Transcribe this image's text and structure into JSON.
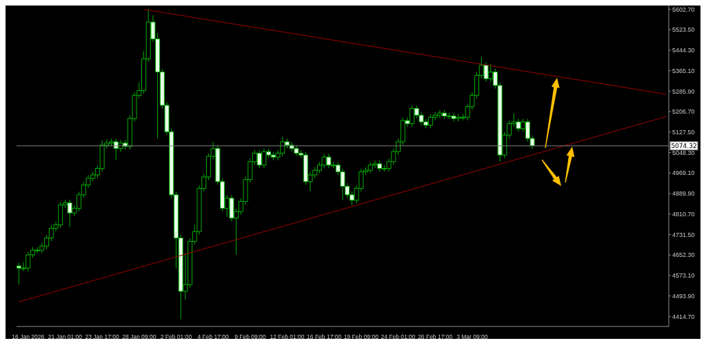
{
  "chart_data": {
    "type": "candlestick",
    "color": "#00b000",
    "categories": [
      null,
      null,
      "16 Jan 2026",
      null,
      null,
      null,
      null,
      null,
      null,
      null,
      "21 Jan 01:00",
      null,
      null,
      null,
      null,
      null,
      null,
      null,
      "23 Jan 17:00",
      null,
      null,
      null,
      null,
      null,
      null,
      null,
      "28 Jan 09:00",
      null,
      null,
      null,
      null,
      null,
      null,
      null,
      "2 Feb 01:00",
      null,
      null,
      null,
      null,
      null,
      null,
      null,
      "4 Feb 17:00",
      null,
      null,
      null,
      null,
      null,
      null,
      null,
      "9 Feb 09:00",
      null,
      null,
      null,
      null,
      null,
      null,
      null,
      "12 Feb 01:00",
      null,
      null,
      null,
      null,
      null,
      null,
      null,
      "16 Feb 17:00",
      null,
      null,
      null,
      null,
      null,
      null,
      null,
      "19 Feb 09:00",
      null,
      null,
      null,
      null,
      null,
      null,
      null,
      "24 Feb 01:00",
      null,
      null,
      null,
      null,
      null,
      null,
      null,
      "26 Feb 17:00",
      null,
      null,
      null,
      null,
      null,
      null,
      null,
      "3 Mar 09:00",
      null,
      null,
      null,
      null,
      null,
      null,
      null,
      null,
      null,
      null,
      null,
      null,
      null,
      null,
      null,
      null,
      null,
      null,
      null,
      null,
      null,
      null,
      null,
      null,
      null,
      null,
      null,
      null,
      null,
      null,
      null,
      null,
      null,
      null,
      null,
      null,
      null,
      null,
      null,
      null,
      null,
      null
    ],
    "ohlc": [
      [
        4610,
        4622,
        4538,
        4602
      ],
      [
        4602,
        4625,
        4590,
        4602
      ],
      [
        4602,
        4665,
        4590,
        4653
      ],
      [
        4653,
        4683,
        4641,
        4671
      ],
      [
        4671,
        4683,
        4659,
        4671
      ],
      [
        4671,
        4699,
        4659,
        4687
      ],
      [
        4687,
        4730,
        4675,
        4718
      ],
      [
        4718,
        4768,
        4706,
        4756
      ],
      [
        4756,
        4781,
        4744,
        4769
      ],
      [
        4769,
        4858,
        4757,
        4846
      ],
      [
        4846,
        4866,
        4834,
        4854
      ],
      [
        4854,
        4866,
        4760,
        4815
      ],
      [
        4815,
        4845,
        4803,
        4833
      ],
      [
        4833,
        4897,
        4821,
        4885
      ],
      [
        4885,
        4935,
        4873,
        4923
      ],
      [
        4923,
        4961,
        4911,
        4949
      ],
      [
        4949,
        4974,
        4937,
        4962
      ],
      [
        4962,
        4999,
        4950,
        4987
      ],
      [
        4987,
        5095,
        4975,
        5077
      ],
      [
        5077,
        5100,
        5065,
        5085
      ],
      [
        5085,
        5102,
        5073,
        5090
      ],
      [
        5090,
        5102,
        5020,
        5064
      ],
      [
        5064,
        5097,
        5052,
        5085
      ],
      [
        5085,
        5097,
        5060,
        5072
      ],
      [
        5072,
        5192,
        5060,
        5180
      ],
      [
        5180,
        5282,
        5168,
        5270
      ],
      [
        5270,
        5320,
        5258,
        5288
      ],
      [
        5288,
        5440,
        5276,
        5411
      ],
      [
        5411,
        5603,
        5399,
        5553
      ],
      [
        5553,
        5580,
        5476,
        5488
      ],
      [
        5488,
        5510,
        5103,
        5360
      ],
      [
        5360,
        5372,
        5219,
        5231
      ],
      [
        5231,
        5243,
        5117,
        5129
      ],
      [
        5129,
        5141,
        4873,
        4885
      ],
      [
        4885,
        4897,
        4600,
        4718
      ],
      [
        4718,
        4730,
        4404,
        4512
      ],
      [
        4512,
        4660,
        4480,
        4538
      ],
      [
        4538,
        4717,
        4526,
        4705
      ],
      [
        4705,
        4770,
        4693,
        4743
      ],
      [
        4743,
        4922,
        4731,
        4910
      ],
      [
        4910,
        4966,
        4898,
        4954
      ],
      [
        4954,
        5046,
        4942,
        5034
      ],
      [
        5034,
        5090,
        5022,
        5064
      ],
      [
        5064,
        5076,
        4924,
        4936
      ],
      [
        4936,
        4948,
        4821,
        4833
      ],
      [
        4833,
        4884,
        4800,
        4872
      ],
      [
        4872,
        4884,
        4783,
        4795
      ],
      [
        4795,
        4832,
        4653,
        4820
      ],
      [
        4820,
        4871,
        4808,
        4859
      ],
      [
        4859,
        4956,
        4847,
        4944
      ],
      [
        4944,
        5025,
        4932,
        5013
      ],
      [
        5013,
        5058,
        5001,
        5046
      ],
      [
        5046,
        5058,
        4988,
        5000
      ],
      [
        5000,
        5064,
        4988,
        5052
      ],
      [
        5052,
        5064,
        5027,
        5039
      ],
      [
        5039,
        5051,
        5019,
        5031
      ],
      [
        5031,
        5058,
        5019,
        5046
      ],
      [
        5046,
        5110,
        5034,
        5090
      ],
      [
        5090,
        5102,
        5065,
        5077
      ],
      [
        5077,
        5089,
        5052,
        5064
      ],
      [
        5064,
        5076,
        5034,
        5046
      ],
      [
        5046,
        5058,
        5027,
        5039
      ],
      [
        5039,
        5051,
        4924,
        4936
      ],
      [
        4936,
        4974,
        4900,
        4962
      ],
      [
        4962,
        4992,
        4950,
        4980
      ],
      [
        4980,
        5012,
        4968,
        5000
      ],
      [
        5000,
        5043,
        4988,
        5031
      ],
      [
        5031,
        5043,
        4988,
        5000
      ],
      [
        5000,
        5012,
        4988,
        5000
      ],
      [
        5000,
        5012,
        4962,
        4974
      ],
      [
        4974,
        4986,
        4864,
        4918
      ],
      [
        4918,
        4930,
        4873,
        4885
      ],
      [
        4885,
        4897,
        4845,
        4864
      ],
      [
        4864,
        4922,
        4852,
        4910
      ],
      [
        4910,
        4986,
        4898,
        4974
      ],
      [
        4974,
        4992,
        4962,
        4980
      ],
      [
        4980,
        5012,
        4968,
        5000
      ],
      [
        5000,
        5017,
        4988,
        5005
      ],
      [
        5005,
        5017,
        4975,
        4987
      ],
      [
        4987,
        4999,
        4975,
        4987
      ],
      [
        4987,
        5025,
        4975,
        5013
      ],
      [
        5013,
        5064,
        5001,
        5052
      ],
      [
        5052,
        5102,
        5040,
        5090
      ],
      [
        5090,
        5184,
        5078,
        5172
      ],
      [
        5172,
        5184,
        5148,
        5160
      ],
      [
        5160,
        5231,
        5148,
        5219
      ],
      [
        5219,
        5231,
        5181,
        5193
      ],
      [
        5193,
        5205,
        5155,
        5167
      ],
      [
        5167,
        5179,
        5142,
        5154
      ],
      [
        5154,
        5197,
        5142,
        5185
      ],
      [
        5185,
        5205,
        5173,
        5193
      ],
      [
        5193,
        5213,
        5181,
        5201
      ],
      [
        5201,
        5213,
        5178,
        5190
      ],
      [
        5190,
        5202,
        5178,
        5190
      ],
      [
        5190,
        5202,
        5168,
        5180
      ],
      [
        5180,
        5197,
        5168,
        5185
      ],
      [
        5185,
        5197,
        5173,
        5185
      ],
      [
        5185,
        5238,
        5173,
        5226
      ],
      [
        5226,
        5282,
        5214,
        5270
      ],
      [
        5270,
        5359,
        5258,
        5347
      ],
      [
        5347,
        5419,
        5335,
        5386
      ],
      [
        5386,
        5398,
        5322,
        5334
      ],
      [
        5334,
        5390,
        5322,
        5360
      ],
      [
        5360,
        5372,
        5296,
        5308
      ],
      [
        5308,
        5320,
        5013,
        5039
      ],
      [
        5039,
        5128,
        5027,
        5116
      ],
      [
        5116,
        5172,
        5104,
        5160
      ],
      [
        5160,
        5200,
        5148,
        5167
      ],
      [
        5167,
        5179,
        5129,
        5141
      ],
      [
        5141,
        5179,
        5129,
        5167
      ],
      [
        5167,
        5179,
        5091,
        5103
      ],
      [
        5103,
        5115,
        5063,
        5075
      ],
      null,
      null,
      null,
      null,
      null,
      null,
      null,
      null,
      null,
      null,
      null,
      null,
      null,
      null,
      null,
      null,
      null,
      null,
      null,
      null,
      null,
      null,
      null,
      null,
      null,
      null,
      null,
      null,
      null
    ],
    "series": [
      {
        "type": "line",
        "color": "#a00000",
        "values": [
          null,
          null,
          null,
          null,
          null,
          null,
          null,
          null,
          null,
          null,
          null,
          null,
          null,
          null,
          null,
          null,
          null,
          null,
          null,
          null,
          null,
          null,
          null,
          null,
          null,
          null,
          null,
          5602,
          null,
          null,
          null,
          null,
          null,
          null,
          null,
          null,
          null,
          null,
          null,
          null,
          null,
          null,
          null,
          null,
          null,
          null,
          null,
          null,
          null,
          null,
          null,
          null,
          null,
          null,
          null,
          null,
          null,
          null,
          null,
          null,
          null,
          null,
          null,
          null,
          null,
          null,
          null,
          null,
          null,
          null,
          null,
          null,
          null,
          null,
          null,
          null,
          null,
          null,
          null,
          null,
          null,
          null,
          null,
          null,
          null,
          null,
          null,
          null,
          null,
          null,
          null,
          null,
          null,
          null,
          null,
          null,
          null,
          null,
          null,
          null,
          null,
          null,
          null,
          null,
          null,
          null,
          null,
          null,
          null,
          null,
          null,
          null,
          null,
          null,
          null,
          null,
          null,
          null,
          null,
          null,
          null,
          null,
          null,
          null,
          null,
          null,
          null,
          null,
          null,
          null,
          null,
          null,
          null,
          null,
          null,
          null,
          null,
          null,
          null,
          null,
          5274
        ]
      },
      {
        "type": "line",
        "color": "#a00000",
        "values": [
          4471,
          null,
          null,
          null,
          null,
          null,
          null,
          null,
          null,
          null,
          null,
          null,
          null,
          null,
          null,
          null,
          null,
          null,
          null,
          null,
          null,
          null,
          null,
          null,
          null,
          null,
          null,
          null,
          null,
          null,
          null,
          null,
          null,
          null,
          null,
          null,
          null,
          null,
          null,
          null,
          null,
          null,
          null,
          null,
          null,
          null,
          null,
          null,
          null,
          null,
          null,
          null,
          null,
          null,
          null,
          null,
          null,
          null,
          null,
          null,
          null,
          null,
          null,
          null,
          null,
          null,
          null,
          null,
          null,
          null,
          null,
          null,
          null,
          null,
          null,
          null,
          null,
          null,
          null,
          null,
          null,
          null,
          null,
          null,
          null,
          null,
          null,
          null,
          null,
          null,
          null,
          null,
          null,
          null,
          null,
          null,
          null,
          null,
          null,
          null,
          null,
          null,
          null,
          null,
          null,
          null,
          null,
          null,
          null,
          null,
          null,
          null,
          null,
          null,
          null,
          null,
          null,
          null,
          null,
          null,
          null,
          null,
          null,
          null,
          null,
          null,
          null,
          null,
          null,
          null,
          null,
          null,
          null,
          null,
          null,
          null,
          null,
          null,
          null,
          null,
          5188
        ]
      }
    ],
    "ref_lines": [
      {
        "axis": "y",
        "value": 5074.32,
        "label": "5074.32",
        "color": "#808080"
      }
    ],
    "ylim": [
      4376,
      5617
    ],
    "yticks": [
      {
        "value": 4414.7,
        "label": "4414.70"
      },
      {
        "value": 4493.9,
        "label": "4493.90"
      },
      {
        "value": 4573.1,
        "label": "4573.10"
      },
      {
        "value": 4652.3,
        "label": "4652.30"
      },
      {
        "value": 4731.5,
        "label": "4731.50"
      },
      {
        "value": 4810.7,
        "label": "4810.70"
      },
      {
        "value": 4889.9,
        "label": "4889.90"
      },
      {
        "value": 4969.1,
        "label": "4969.10"
      },
      {
        "value": 5048.3,
        "label": "5048.30"
      },
      {
        "value": 5127.5,
        "label": "5127.50"
      },
      {
        "value": 5206.7,
        "label": "5206.70"
      },
      {
        "value": 5285.9,
        "label": "5285.90"
      },
      {
        "value": 5365.1,
        "label": "5365.10"
      },
      {
        "value": 5444.3,
        "label": "5444.30"
      },
      {
        "value": 5523.5,
        "label": "5523.50"
      },
      {
        "value": 5602.7,
        "label": "5602.70"
      }
    ]
  }
}
